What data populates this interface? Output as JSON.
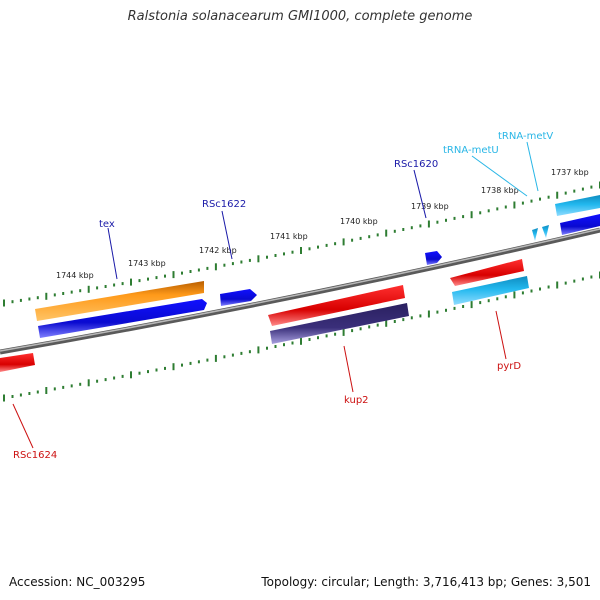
{
  "title": "Ralstonia solanacearum GMI1000, complete genome",
  "footer": {
    "accession": "Accession: NC_003295",
    "summary": "Topology: circular; Length: 3,716,413 bp; Genes: 3,501"
  },
  "colors": {
    "backbone": "#8a8a8a",
    "tick": "#2e7d32",
    "forward_label": "#1a1aa8",
    "reverse_label": "#cc1111",
    "trna_label": "#29b6e6",
    "blue": "#1414e0",
    "orange": "#ff9a1a",
    "red": "#ee1111",
    "cyan": "#22b8ee",
    "navy": "#3a2f7a"
  },
  "kbp_labels": [
    "1744 kbp",
    "1743 kbp",
    "1742 kbp",
    "1741 kbp",
    "1740 kbp",
    "1739 kbp",
    "1738 kbp",
    "1737 kbp"
  ],
  "gene_labels": {
    "tex": "tex",
    "rsc1622": "RSc1622",
    "rsc1620": "RSc1620",
    "trna_metu": "tRNA-metU",
    "trna_metv": "tRNA-metV",
    "kup2": "kup2",
    "pyrd": "pyrD",
    "rsc1624": "RSc1624"
  }
}
